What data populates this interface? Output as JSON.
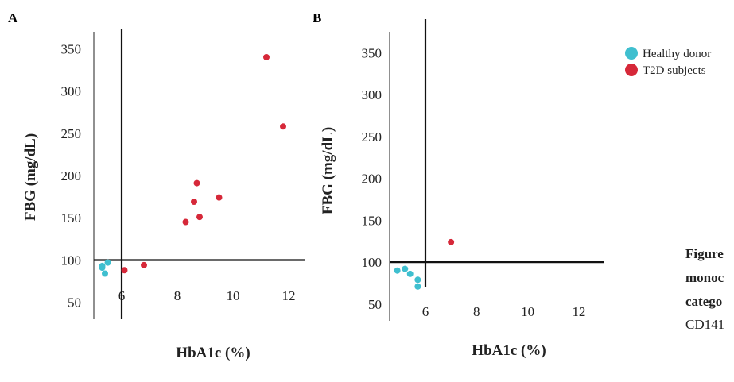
{
  "legend": [
    {
      "label": "Healthy donor",
      "color": "#3fbfcf"
    },
    {
      "label": "T2D subjects",
      "color": "#d62839"
    }
  ],
  "caption": {
    "lines": [
      "Figure",
      "monoc",
      "catego"
    ],
    "last_line": "CD141"
  },
  "chart_data": [
    {
      "type": "scatter",
      "panel_label": "A",
      "xlabel": "HbA1c (%)",
      "ylabel": "FBG (mg/dL)",
      "xlim": [
        5,
        12.6
      ],
      "ylim": [
        30,
        370
      ],
      "xticks": [
        6,
        8,
        10,
        12
      ],
      "yticks": [
        50,
        100,
        150,
        200,
        250,
        300,
        350
      ],
      "reference_lines": {
        "x": 6,
        "y": 100
      },
      "grid": false,
      "series": [
        {
          "name": "Healthy donor",
          "color": "#3fbfcf",
          "points": [
            [
              5.3,
              93
            ],
            [
              5.3,
              91
            ],
            [
              5.5,
              97
            ],
            [
              5.4,
              84
            ]
          ]
        },
        {
          "name": "T2D subjects",
          "color": "#d62839",
          "points": [
            [
              6.1,
              88
            ],
            [
              6.8,
              94
            ],
            [
              8.3,
              145
            ],
            [
              8.6,
              169
            ],
            [
              8.7,
              191
            ],
            [
              8.8,
              151
            ],
            [
              9.5,
              174
            ],
            [
              11.2,
              340
            ],
            [
              11.8,
              258
            ]
          ]
        }
      ]
    },
    {
      "type": "scatter",
      "panel_label": "B",
      "xlabel": "HbA1c (%)",
      "ylabel": "FBG (mg/dL)",
      "xlim": [
        4.6,
        13
      ],
      "ylim": [
        30,
        375
      ],
      "xticks": [
        6,
        8,
        10,
        12
      ],
      "yticks": [
        50,
        100,
        150,
        200,
        250,
        300,
        350
      ],
      "reference_lines": {
        "x": 6,
        "y": 100
      },
      "grid": false,
      "series": [
        {
          "name": "Healthy donor",
          "color": "#3fbfcf",
          "points": [
            [
              4.9,
              90
            ],
            [
              5.2,
              92
            ],
            [
              5.4,
              86
            ],
            [
              5.7,
              79
            ],
            [
              5.7,
              71
            ]
          ]
        },
        {
          "name": "T2D subjects",
          "color": "#d62839",
          "points": [
            [
              7.0,
              124
            ]
          ]
        }
      ]
    }
  ]
}
